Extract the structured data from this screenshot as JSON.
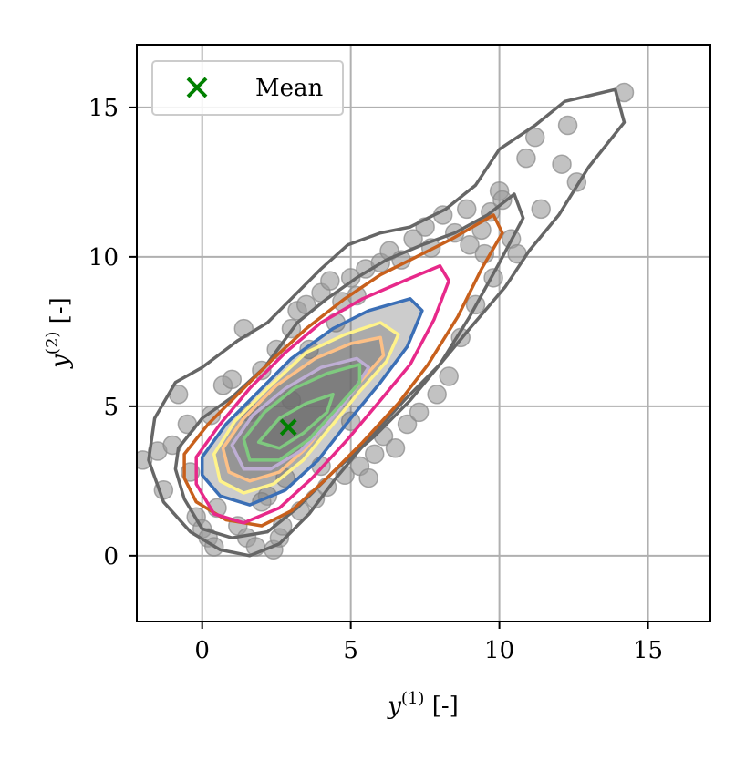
{
  "chart_data": {
    "type": "scatter",
    "title": "",
    "xlabel": {
      "base": "y",
      "sup": "(1)",
      "unit": "[-]"
    },
    "ylabel": {
      "base": "y",
      "sup": "(2)",
      "unit": "[-]"
    },
    "xlim": [
      -2.2,
      17.1
    ],
    "ylim": [
      -2.2,
      17.1
    ],
    "xticks": [
      0,
      5,
      10,
      15
    ],
    "yticks": [
      0,
      5,
      10,
      15
    ],
    "xtick_labels": [
      "0",
      "5",
      "10",
      "15"
    ],
    "ytick_labels": [
      "0",
      "5",
      "10",
      "15"
    ],
    "grid": true,
    "legend": {
      "position": "top-left",
      "entries": [
        {
          "label": "Mean",
          "marker": "x",
          "color": "#008000"
        }
      ]
    },
    "mean": {
      "x": 2.9,
      "y": 4.3
    },
    "scatter_color": "#9a9a9a",
    "scatter_points": [
      [
        -2.0,
        3.2
      ],
      [
        -1.5,
        3.5
      ],
      [
        -1.3,
        2.2
      ],
      [
        -1.0,
        3.7
      ],
      [
        -0.8,
        5.4
      ],
      [
        -0.5,
        4.4
      ],
      [
        -0.4,
        2.8
      ],
      [
        -0.2,
        1.3
      ],
      [
        0.0,
        0.9
      ],
      [
        0.2,
        0.6
      ],
      [
        0.3,
        4.7
      ],
      [
        0.4,
        0.3
      ],
      [
        0.5,
        1.6
      ],
      [
        0.7,
        5.7
      ],
      [
        1.0,
        5.9
      ],
      [
        1.2,
        1.0
      ],
      [
        1.4,
        7.6
      ],
      [
        1.5,
        0.6
      ],
      [
        1.6,
        4.8
      ],
      [
        1.8,
        0.3
      ],
      [
        2.0,
        6.2
      ],
      [
        2.2,
        2.0
      ],
      [
        2.4,
        0.2
      ],
      [
        2.5,
        6.9
      ],
      [
        2.6,
        0.6
      ],
      [
        2.7,
        1.0
      ],
      [
        2.8,
        2.6
      ],
      [
        3.0,
        7.6
      ],
      [
        3.2,
        8.2
      ],
      [
        3.3,
        1.5
      ],
      [
        3.5,
        8.4
      ],
      [
        3.6,
        6.9
      ],
      [
        3.8,
        1.9
      ],
      [
        4.0,
        8.8
      ],
      [
        4.2,
        2.3
      ],
      [
        4.3,
        9.2
      ],
      [
        4.5,
        7.8
      ],
      [
        4.7,
        8.5
      ],
      [
        4.8,
        2.7
      ],
      [
        5.0,
        9.3
      ],
      [
        5.2,
        8.7
      ],
      [
        5.3,
        3.0
      ],
      [
        5.5,
        9.6
      ],
      [
        5.6,
        2.6
      ],
      [
        5.8,
        3.4
      ],
      [
        6.0,
        9.8
      ],
      [
        6.1,
        4.0
      ],
      [
        6.3,
        10.2
      ],
      [
        6.5,
        3.6
      ],
      [
        6.7,
        9.9
      ],
      [
        6.9,
        4.4
      ],
      [
        7.1,
        10.6
      ],
      [
        7.3,
        4.8
      ],
      [
        7.5,
        11.0
      ],
      [
        7.7,
        10.3
      ],
      [
        7.9,
        5.4
      ],
      [
        8.1,
        11.4
      ],
      [
        8.3,
        6.0
      ],
      [
        8.5,
        10.8
      ],
      [
        8.7,
        7.3
      ],
      [
        8.9,
        11.6
      ],
      [
        9.0,
        10.4
      ],
      [
        9.2,
        8.4
      ],
      [
        9.4,
        10.9
      ],
      [
        9.5,
        10.1
      ],
      [
        9.7,
        11.5
      ],
      [
        9.8,
        9.3
      ],
      [
        10.0,
        12.2
      ],
      [
        10.1,
        11.9
      ],
      [
        10.4,
        10.6
      ],
      [
        10.6,
        10.1
      ],
      [
        10.9,
        13.3
      ],
      [
        11.2,
        14.0
      ],
      [
        11.4,
        11.6
      ],
      [
        12.1,
        13.1
      ],
      [
        12.3,
        14.4
      ],
      [
        12.6,
        12.5
      ],
      [
        14.2,
        15.5
      ],
      [
        5.0,
        4.5
      ],
      [
        2.0,
        1.8
      ],
      [
        4.0,
        3.0
      ],
      [
        3.0,
        5.2
      ]
    ],
    "contours": [
      {
        "color": "#666666",
        "points": [
          [
            -1.6,
            4.6
          ],
          [
            -0.9,
            5.8
          ],
          [
            0.0,
            6.3
          ],
          [
            1.2,
            7.2
          ],
          [
            2.2,
            7.8
          ],
          [
            3.2,
            8.8
          ],
          [
            4.0,
            9.6
          ],
          [
            4.9,
            10.4
          ],
          [
            6.0,
            10.8
          ],
          [
            7.0,
            11.0
          ],
          [
            8.2,
            11.6
          ],
          [
            9.2,
            12.4
          ],
          [
            10.0,
            13.6
          ],
          [
            11.2,
            14.4
          ],
          [
            12.2,
            15.2
          ],
          [
            13.9,
            15.6
          ],
          [
            14.2,
            14.5
          ],
          [
            13.0,
            13.0
          ],
          [
            12.0,
            11.4
          ],
          [
            11.0,
            10.2
          ],
          [
            10.2,
            9.0
          ],
          [
            9.0,
            7.6
          ],
          [
            8.0,
            6.4
          ],
          [
            6.8,
            5.2
          ],
          [
            5.6,
            3.9
          ],
          [
            4.5,
            2.6
          ],
          [
            3.6,
            1.4
          ],
          [
            2.6,
            0.4
          ],
          [
            1.6,
            0.0
          ],
          [
            0.6,
            0.2
          ],
          [
            -0.4,
            0.8
          ],
          [
            -1.3,
            1.8
          ],
          [
            -1.8,
            3.2
          ]
        ]
      },
      {
        "color": "#666666",
        "points": [
          [
            -0.8,
            3.6
          ],
          [
            0.0,
            4.6
          ],
          [
            1.0,
            5.3
          ],
          [
            2.1,
            6.3
          ],
          [
            3.2,
            7.8
          ],
          [
            4.2,
            8.6
          ],
          [
            5.2,
            9.3
          ],
          [
            6.2,
            9.9
          ],
          [
            7.4,
            10.4
          ],
          [
            8.5,
            10.8
          ],
          [
            9.6,
            11.4
          ],
          [
            10.5,
            12.1
          ],
          [
            10.8,
            11.3
          ],
          [
            10.0,
            9.8
          ],
          [
            9.0,
            8.0
          ],
          [
            8.0,
            6.4
          ],
          [
            7.0,
            5.2
          ],
          [
            5.8,
            4.0
          ],
          [
            4.4,
            2.8
          ],
          [
            3.2,
            1.6
          ],
          [
            2.2,
            0.8
          ],
          [
            1.0,
            0.6
          ],
          [
            0.0,
            0.9
          ],
          [
            -0.6,
            1.9
          ],
          [
            -0.9,
            2.9
          ]
        ]
      },
      {
        "color": "#c8601c",
        "points": [
          [
            -0.6,
            3.4
          ],
          [
            0.2,
            4.4
          ],
          [
            1.2,
            5.4
          ],
          [
            2.4,
            6.6
          ],
          [
            3.5,
            7.6
          ],
          [
            4.8,
            8.6
          ],
          [
            6.0,
            9.4
          ],
          [
            7.2,
            10.0
          ],
          [
            8.4,
            10.6
          ],
          [
            9.8,
            11.4
          ],
          [
            10.1,
            10.8
          ],
          [
            9.4,
            9.6
          ],
          [
            8.6,
            8.0
          ],
          [
            7.6,
            6.4
          ],
          [
            6.6,
            5.1
          ],
          [
            5.4,
            3.8
          ],
          [
            4.2,
            2.6
          ],
          [
            3.0,
            1.5
          ],
          [
            2.0,
            1.0
          ],
          [
            0.8,
            1.2
          ],
          [
            -0.2,
            1.8
          ],
          [
            -0.6,
            2.6
          ]
        ]
      },
      {
        "color": "#e7298a",
        "points": [
          [
            -0.2,
            3.3
          ],
          [
            0.6,
            4.4
          ],
          [
            1.6,
            5.6
          ],
          [
            2.8,
            6.8
          ],
          [
            4.0,
            7.8
          ],
          [
            5.4,
            8.6
          ],
          [
            6.8,
            9.2
          ],
          [
            8.0,
            9.7
          ],
          [
            8.3,
            9.2
          ],
          [
            7.8,
            7.9
          ],
          [
            7.0,
            6.4
          ],
          [
            6.0,
            5.2
          ],
          [
            4.9,
            3.9
          ],
          [
            3.7,
            2.6
          ],
          [
            2.6,
            1.6
          ],
          [
            1.4,
            1.1
          ],
          [
            0.4,
            1.4
          ],
          [
            -0.2,
            2.4
          ]
        ]
      },
      {
        "color": "#3b6fb6",
        "points": [
          [
            0.0,
            3.3
          ],
          [
            0.8,
            4.4
          ],
          [
            1.8,
            5.4
          ],
          [
            3.0,
            6.6
          ],
          [
            4.4,
            7.6
          ],
          [
            5.6,
            8.2
          ],
          [
            7.0,
            8.6
          ],
          [
            7.4,
            8.2
          ],
          [
            6.9,
            7.0
          ],
          [
            6.0,
            5.8
          ],
          [
            5.0,
            4.6
          ],
          [
            3.9,
            3.2
          ],
          [
            2.8,
            2.2
          ],
          [
            1.6,
            1.7
          ],
          [
            0.6,
            2.0
          ],
          [
            0.0,
            2.7
          ]
        ]
      },
      {
        "color": "#fff38a",
        "points": [
          [
            0.4,
            3.4
          ],
          [
            1.1,
            4.5
          ],
          [
            2.2,
            5.6
          ],
          [
            3.5,
            6.8
          ],
          [
            4.8,
            7.4
          ],
          [
            6.0,
            7.8
          ],
          [
            6.6,
            7.4
          ],
          [
            6.2,
            6.5
          ],
          [
            5.3,
            5.5
          ],
          [
            4.4,
            4.4
          ],
          [
            3.4,
            3.2
          ],
          [
            2.4,
            2.4
          ],
          [
            1.4,
            2.1
          ],
          [
            0.6,
            2.5
          ]
        ]
      },
      {
        "color": "#fdc086",
        "points": [
          [
            0.7,
            3.6
          ],
          [
            1.4,
            4.6
          ],
          [
            2.5,
            5.7
          ],
          [
            3.8,
            6.6
          ],
          [
            5.0,
            7.1
          ],
          [
            6.0,
            7.3
          ],
          [
            6.1,
            6.7
          ],
          [
            5.3,
            5.8
          ],
          [
            4.4,
            4.7
          ],
          [
            3.5,
            3.6
          ],
          [
            2.6,
            2.8
          ],
          [
            1.6,
            2.5
          ],
          [
            0.9,
            2.8
          ]
        ]
      },
      {
        "color": "#beaed4",
        "points": [
          [
            1.0,
            3.7
          ],
          [
            1.7,
            4.7
          ],
          [
            2.8,
            5.6
          ],
          [
            4.0,
            6.3
          ],
          [
            5.2,
            6.6
          ],
          [
            5.6,
            6.3
          ],
          [
            5.0,
            5.4
          ],
          [
            4.2,
            4.4
          ],
          [
            3.3,
            3.5
          ],
          [
            2.3,
            2.9
          ],
          [
            1.4,
            2.9
          ]
        ]
      },
      {
        "color": "#7fc97f",
        "points": [
          [
            1.4,
            3.9
          ],
          [
            2.1,
            4.8
          ],
          [
            3.1,
            5.6
          ],
          [
            4.2,
            6.1
          ],
          [
            5.3,
            6.4
          ],
          [
            5.3,
            5.8
          ],
          [
            4.5,
            4.9
          ],
          [
            3.6,
            3.9
          ],
          [
            2.6,
            3.2
          ],
          [
            1.6,
            3.2
          ]
        ]
      },
      {
        "color": "#7fc97f",
        "points": [
          [
            1.9,
            3.8
          ],
          [
            2.6,
            4.6
          ],
          [
            3.5,
            5.1
          ],
          [
            4.4,
            5.4
          ],
          [
            4.2,
            4.8
          ],
          [
            3.4,
            4.1
          ],
          [
            2.6,
            3.6
          ]
        ]
      }
    ]
  }
}
